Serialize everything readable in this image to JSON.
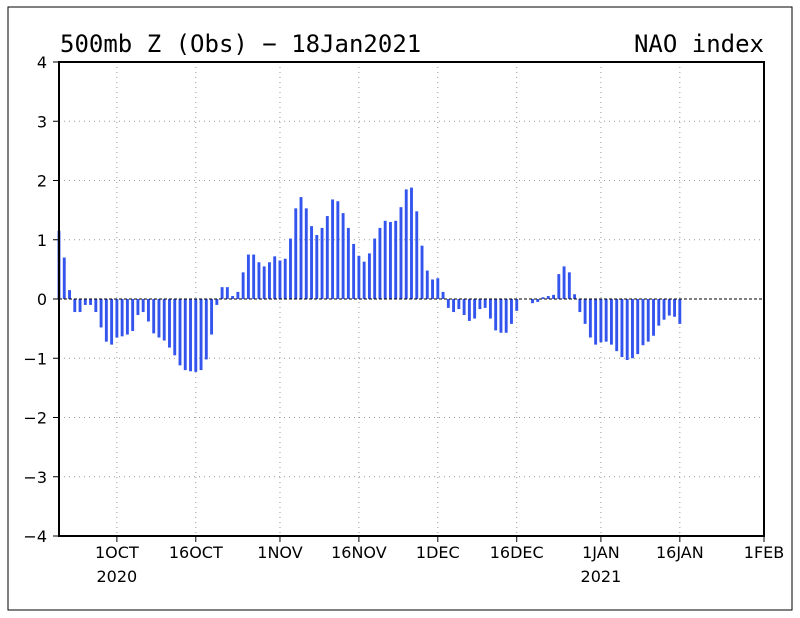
{
  "title_left": "500mb Z (Obs) − 18Jan2021",
  "title_right": "NAO index",
  "chart_data": {
    "type": "bar",
    "ylim": [
      -4,
      4
    ],
    "y_ticks": [
      "4",
      "3",
      "2",
      "1",
      "0",
      "−1",
      "−2",
      "−3",
      "−4"
    ],
    "y_tick_values": [
      4,
      3,
      2,
      1,
      0,
      -1,
      -2,
      -3,
      -4
    ],
    "x_start": "2020-09-20",
    "x_end": "2021-02-01",
    "x_ticks": [
      {
        "date": "2020-10-01",
        "label": "1OCT",
        "year": "2020"
      },
      {
        "date": "2020-10-16",
        "label": "16OCT",
        "year": ""
      },
      {
        "date": "2020-11-01",
        "label": "1NOV",
        "year": ""
      },
      {
        "date": "2020-11-16",
        "label": "16NOV",
        "year": ""
      },
      {
        "date": "2020-12-01",
        "label": "1DEC",
        "year": ""
      },
      {
        "date": "2020-12-16",
        "label": "16DEC",
        "year": ""
      },
      {
        "date": "2021-01-01",
        "label": "1JAN",
        "year": "2021"
      },
      {
        "date": "2021-01-16",
        "label": "16JAN",
        "year": ""
      },
      {
        "date": "2021-02-01",
        "label": "1FEB",
        "year": ""
      }
    ],
    "grid": true,
    "zero_line": "dashed",
    "bar_color": "#3355ee",
    "first_date": "2020-09-20",
    "values": [
      1.15,
      0.7,
      0.15,
      -0.22,
      -0.22,
      -0.1,
      -0.1,
      -0.22,
      -0.48,
      -0.72,
      -0.77,
      -0.65,
      -0.63,
      -0.6,
      -0.54,
      -0.27,
      -0.22,
      -0.38,
      -0.58,
      -0.65,
      -0.7,
      -0.82,
      -0.95,
      -1.12,
      -1.2,
      -1.22,
      -1.23,
      -1.2,
      -1.02,
      -0.6,
      -0.1,
      0.2,
      0.2,
      0.05,
      0.12,
      0.45,
      0.75,
      0.75,
      0.62,
      0.55,
      0.62,
      0.72,
      0.65,
      0.68,
      1.02,
      1.53,
      1.72,
      1.53,
      1.23,
      1.08,
      1.2,
      1.4,
      1.68,
      1.65,
      1.45,
      1.2,
      0.93,
      0.73,
      0.63,
      0.77,
      1.02,
      1.2,
      1.32,
      1.3,
      1.32,
      1.55,
      1.85,
      1.88,
      1.48,
      0.9,
      0.48,
      0.33,
      0.35,
      0.12,
      -0.15,
      -0.22,
      -0.17,
      -0.27,
      -0.37,
      -0.33,
      -0.17,
      -0.15,
      -0.33,
      -0.53,
      -0.57,
      -0.57,
      -0.42,
      -0.2,
      0.0,
      0.0,
      -0.07,
      -0.05,
      0.03,
      0.05,
      0.07,
      0.42,
      0.55,
      0.45,
      0.08,
      -0.22,
      -0.42,
      -0.65,
      -0.77,
      -0.73,
      -0.72,
      -0.77,
      -0.88,
      -0.98,
      -1.03,
      -1.0,
      -0.93,
      -0.78,
      -0.72,
      -0.62,
      -0.45,
      -0.35,
      -0.28,
      -0.3,
      -0.42
    ]
  }
}
